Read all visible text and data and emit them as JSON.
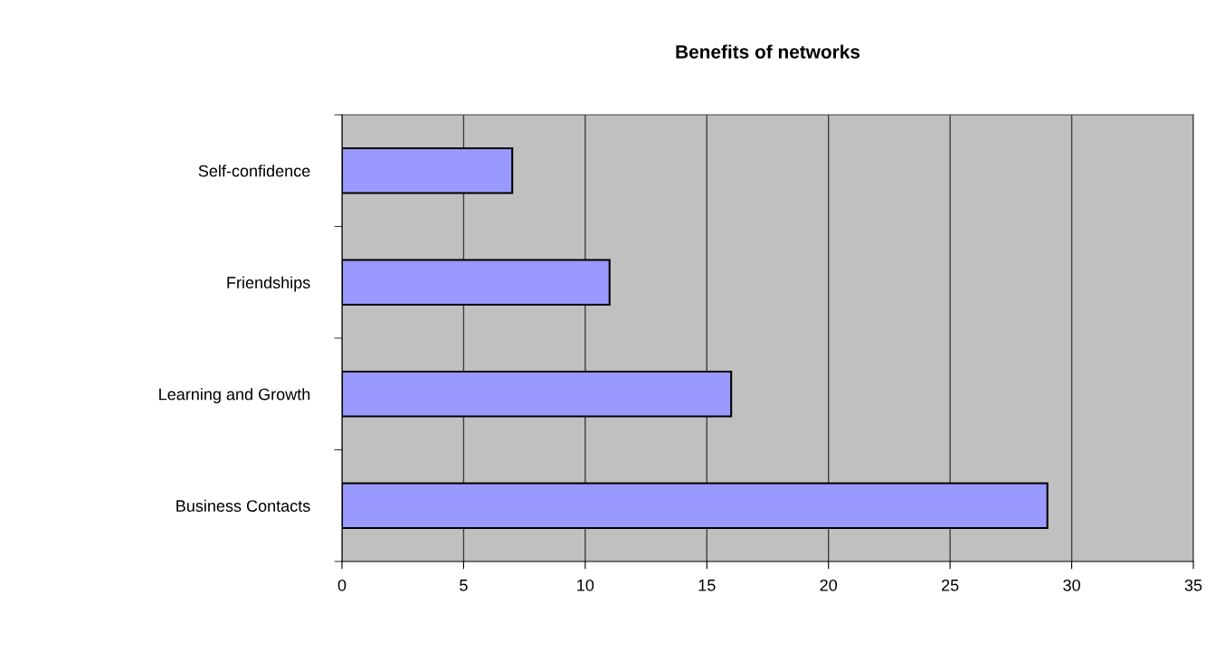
{
  "chart_data": {
    "type": "bar",
    "orientation": "horizontal",
    "title": "Benefits of networks",
    "categories": [
      "Self-confidence",
      "Friendships",
      "Learning and Growth",
      "Business Contacts"
    ],
    "values": [
      7,
      11,
      16,
      29
    ],
    "color": "#9999ff",
    "xlim": [
      0,
      35
    ],
    "xticks": [
      0,
      5,
      10,
      15,
      20,
      25,
      30,
      35
    ],
    "grid": "x"
  }
}
